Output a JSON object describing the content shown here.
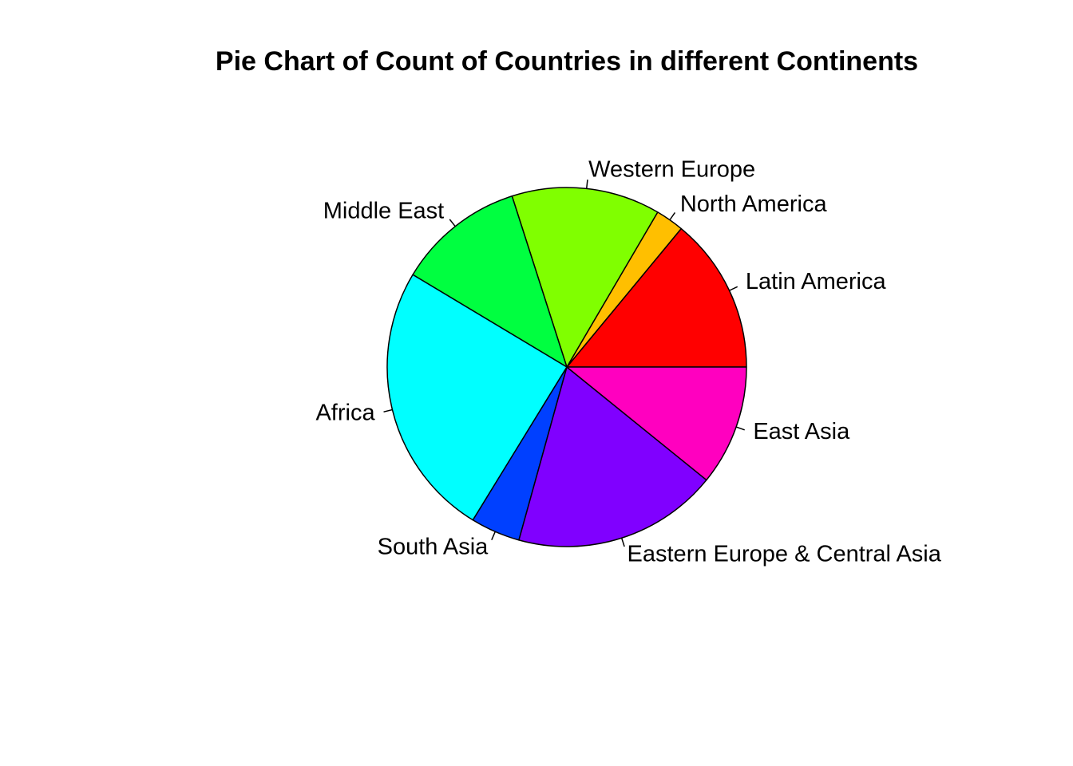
{
  "chart_data": {
    "type": "pie",
    "title": "Pie Chart of Count of Countries in different Continents",
    "start": "3 o'clock",
    "direction": "counterclockwise",
    "border_color": "#000000",
    "slices": [
      {
        "label": "Latin America",
        "value": 22,
        "color": "#FF0000"
      },
      {
        "label": "North America",
        "value": 4,
        "color": "#FFBF00"
      },
      {
        "label": "Western Europe",
        "value": 21,
        "color": "#80FF00"
      },
      {
        "label": "Middle East",
        "value": 18,
        "color": "#00FF40"
      },
      {
        "label": "Africa",
        "value": 39,
        "color": "#00FFFF"
      },
      {
        "label": "South Asia",
        "value": 7,
        "color": "#0040FF"
      },
      {
        "label": "Eastern Europe & Central Asia",
        "value": 29,
        "color": "#8000FF"
      },
      {
        "label": "East Asia",
        "value": 17,
        "color": "#FF00BF"
      }
    ]
  }
}
